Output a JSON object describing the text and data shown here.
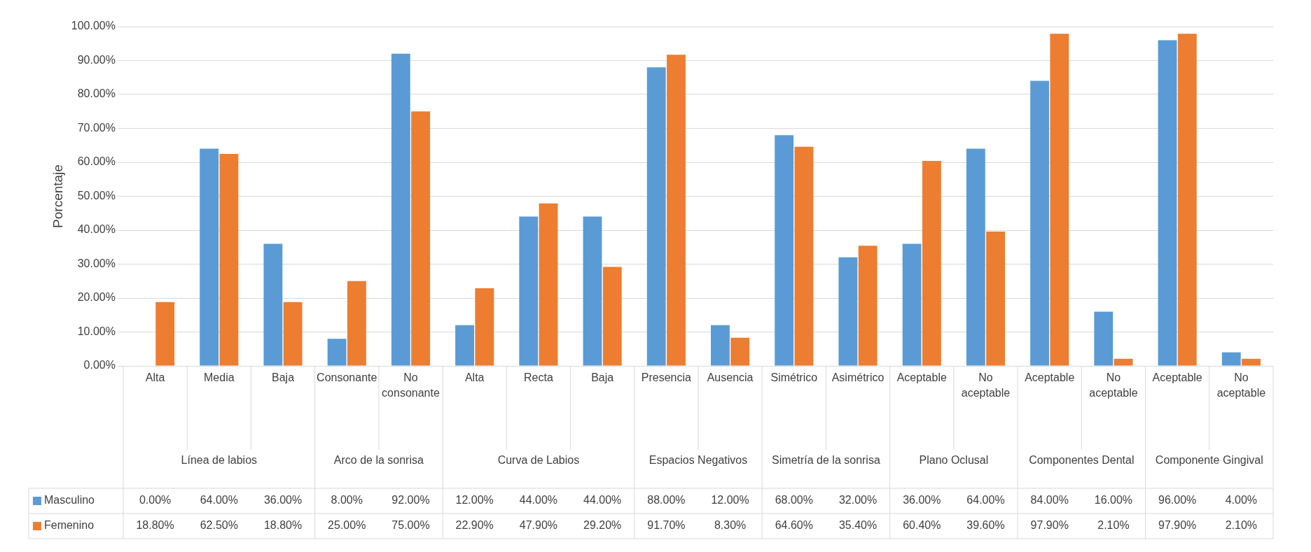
{
  "chart_data": {
    "type": "bar",
    "ylabel": "Porcentaje",
    "categories": [
      "Alta",
      "Media",
      "Baja",
      "Consonante",
      "No consonante",
      "Alta",
      "Recta",
      "Baja",
      "Presencia",
      "Ausencia",
      "Simétrico",
      "Asimétrico",
      "Aceptable",
      "No aceptable",
      "Aceptable",
      "No aceptable",
      "Aceptable",
      "No aceptable"
    ],
    "annotations": [
      "Línea de labios",
      "Arco de la sonrisa",
      "Curva de Labios",
      "Espacios Negativos",
      "Simetría de la sonrisa",
      "Plano Oclusal",
      "Componentes Dental",
      "Componente Gingival"
    ],
    "series": [
      {
        "name": "Masculino",
        "color": "#5b9bd5",
        "values": [
          0,
          64,
          36,
          8,
          92,
          12,
          44,
          44,
          88,
          12,
          68,
          32,
          36,
          64,
          84,
          16,
          96,
          4
        ],
        "value_labels": [
          "0.00%",
          "64.00%",
          "36.00%",
          "8.00%",
          "92.00%",
          "12.00%",
          "44.00%",
          "44.00%",
          "88.00%",
          "12.00%",
          "68.00%",
          "32.00%",
          "36.00%",
          "64.00%",
          "84.00%",
          "16.00%",
          "96.00%",
          "4.00%"
        ]
      },
      {
        "name": "Femenino",
        "color": "#ed7d31",
        "values": [
          18.8,
          62.5,
          18.8,
          25,
          75,
          22.9,
          47.9,
          29.2,
          91.7,
          8.3,
          64.6,
          35.4,
          60.4,
          39.6,
          97.9,
          2.1,
          97.9,
          2.1
        ],
        "value_labels": [
          "18.80%",
          "62.50%",
          "18.80%",
          "25.00%",
          "75.00%",
          "22.90%",
          "47.90%",
          "29.20%",
          "91.70%",
          "8.30%",
          "64.60%",
          "35.40%",
          "60.40%",
          "39.60%",
          "97.90%",
          "2.10%",
          "97.90%",
          "2.10%"
        ]
      }
    ],
    "ylim": [
      0,
      100
    ],
    "yticks": [
      {
        "value": 0,
        "label": "0.00%"
      },
      {
        "value": 10,
        "label": "10.00%"
      },
      {
        "value": 20,
        "label": "20.00%"
      },
      {
        "value": 30,
        "label": "30.00%"
      },
      {
        "value": 40,
        "label": "40.00%"
      },
      {
        "value": 50,
        "label": "50.00%"
      },
      {
        "value": 60,
        "label": "60.00%"
      },
      {
        "value": 70,
        "label": "70.00%"
      },
      {
        "value": 80,
        "label": "80.00%"
      },
      {
        "value": 90,
        "label": "90.00%"
      },
      {
        "value": 100,
        "label": "100.00%"
      }
    ],
    "grid": "y",
    "legend": "bottom"
  }
}
